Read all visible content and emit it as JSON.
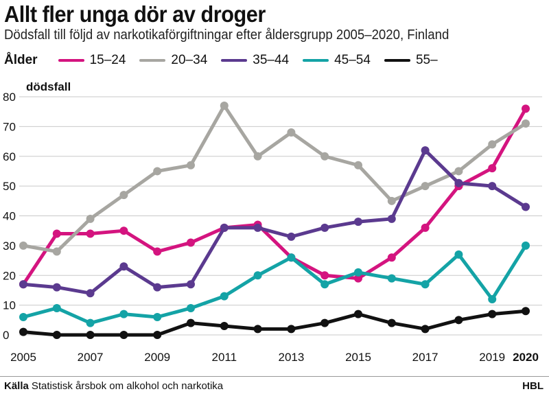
{
  "header": {
    "title": "Allt fler unga dör av droger",
    "subtitle": "Dödsfall till följd av narkotikaförgiftningar efter åldersgrupp 2005–2020, Finland"
  },
  "legend": {
    "title": "Ålder"
  },
  "footer": {
    "source_label": "Källa",
    "source_text": "Statistisk årsbok om alkohol och narkotika",
    "brand": "HBL"
  },
  "chart_data": {
    "type": "line",
    "title": "Allt fler unga dör av droger",
    "subtitle": "Dödsfall till följd av narkotikaförgiftningar efter åldersgrupp 2005–2020, Finland",
    "ylabel": "dödsfall",
    "xlabel": "",
    "x": [
      2005,
      2006,
      2007,
      2008,
      2009,
      2010,
      2011,
      2012,
      2013,
      2014,
      2015,
      2016,
      2017,
      2018,
      2019,
      2020
    ],
    "ylim": [
      0,
      80
    ],
    "yticks": [
      0,
      10,
      20,
      30,
      40,
      50,
      60,
      70,
      80
    ],
    "xticks": [
      "2005",
      "2007",
      "2009",
      "2011",
      "2013",
      "2015",
      "2017",
      "2019",
      "2020"
    ],
    "grid": true,
    "legend_position": "top",
    "series": [
      {
        "name": "15–24",
        "color": "#d4147f",
        "values": [
          17,
          34,
          34,
          35,
          28,
          31,
          36,
          37,
          26,
          20,
          19,
          26,
          36,
          50,
          56,
          76
        ]
      },
      {
        "name": "20–34",
        "color": "#a7a6a1",
        "values": [
          30,
          28,
          39,
          47,
          55,
          57,
          77,
          60,
          68,
          60,
          57,
          45,
          50,
          55,
          64,
          71
        ]
      },
      {
        "name": "35–44",
        "color": "#5b3a8f",
        "values": [
          17,
          16,
          14,
          23,
          16,
          17,
          36,
          36,
          33,
          36,
          38,
          39,
          62,
          51,
          50,
          43
        ]
      },
      {
        "name": "45–54",
        "color": "#14a3a6",
        "values": [
          6,
          9,
          4,
          7,
          6,
          9,
          13,
          20,
          26,
          17,
          21,
          19,
          17,
          27,
          12,
          30
        ]
      },
      {
        "name": "55–",
        "color": "#111111",
        "values": [
          1,
          0,
          0,
          0,
          0,
          4,
          3,
          2,
          2,
          4,
          7,
          4,
          2,
          5,
          7,
          8
        ]
      }
    ]
  }
}
